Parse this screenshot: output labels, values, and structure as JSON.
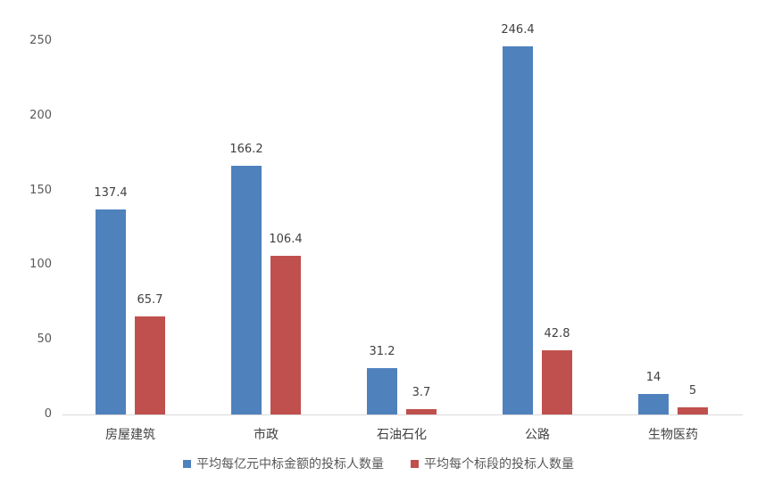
{
  "chart_data": {
    "type": "bar",
    "title": "",
    "xlabel": "",
    "ylabel": "",
    "ylim": [
      0,
      250
    ],
    "yticks": [
      0,
      50,
      100,
      150,
      200,
      250
    ],
    "grid": false,
    "legend_position": "bottom",
    "categories": [
      "房屋建筑",
      "市政",
      "石油石化",
      "公路",
      "生物医药"
    ],
    "series": [
      {
        "name": "平均每亿元中标金额的投标人数量",
        "color": "#4f81bd",
        "values": [
          137.4,
          166.2,
          31.2,
          246.4,
          14
        ],
        "labels": [
          "137.4",
          "166.2",
          "31.2",
          "246.4",
          "14"
        ]
      },
      {
        "name": "平均每个标段的投标人数量",
        "color": "#c0504d",
        "values": [
          65.7,
          106.4,
          3.7,
          42.8,
          5
        ],
        "labels": [
          "65.7",
          "106.4",
          "3.7",
          "42.8",
          "5"
        ]
      }
    ]
  }
}
